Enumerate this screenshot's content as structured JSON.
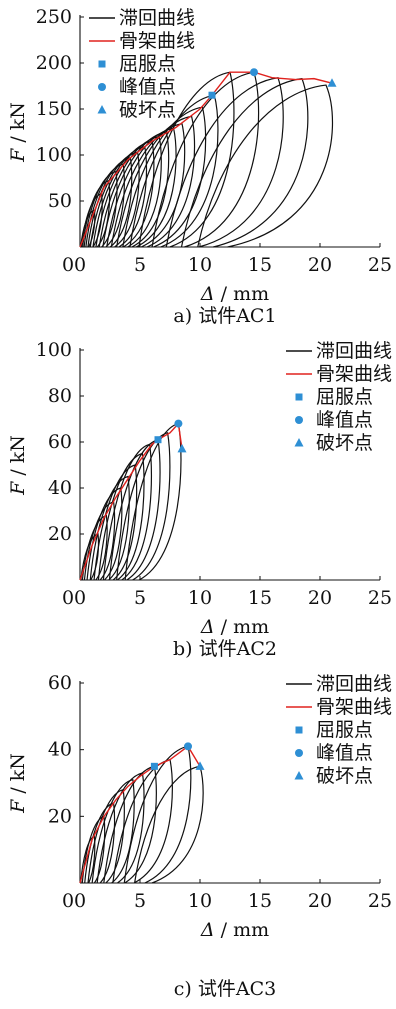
{
  "legend": {
    "hysteresis": "滞回曲线",
    "skeleton": "骨架曲线",
    "yield": "屈服点",
    "peak": "峰值点",
    "failure": "破坏点"
  },
  "colors": {
    "hysteresis": "#111111",
    "skeleton": "#e0221e",
    "marker": "#2e8fd4"
  },
  "chart_data": [
    {
      "type": "line",
      "caption": "a)  试件AC1",
      "xlabel_symbol": "Δ",
      "xlabel_unit": " / mm",
      "ylabel_symbol": "F",
      "ylabel_unit": " / kN",
      "xlim": [
        0,
        25
      ],
      "ylim": [
        0,
        250
      ],
      "xticks": [
        0,
        5,
        10,
        15,
        20,
        25
      ],
      "yticks": [
        50,
        100,
        150,
        200,
        250
      ],
      "skeleton": {
        "x": [
          0,
          2,
          4,
          6,
          8,
          10,
          11,
          12.5,
          14.5,
          16,
          18,
          19.5,
          21
        ],
        "y": [
          0,
          65,
          95,
          115,
          130,
          150,
          165,
          190,
          190,
          184,
          182,
          183,
          178
        ]
      },
      "yield_point": {
        "x": 11,
        "y": 165
      },
      "peak_point": {
        "x": 14.5,
        "y": 190
      },
      "failure_point": {
        "x": 21,
        "y": 178
      },
      "loop_peaks": {
        "x": [
          1.2,
          1.8,
          2.4,
          3.0,
          3.6,
          4.2,
          4.8,
          5.4,
          6.0,
          6.6,
          7.2,
          7.8,
          8.5,
          9.3,
          10.2,
          11.2,
          12.5,
          14.5,
          16.5,
          18.5,
          20.5
        ],
        "y": [
          40,
          58,
          72,
          82,
          90,
          97,
          103,
          109,
          115,
          120,
          125,
          129,
          134,
          142,
          152,
          165,
          190,
          190,
          184,
          183,
          176
        ]
      }
    },
    {
      "type": "line",
      "caption": "b)  试件AC2",
      "xlabel_symbol": "Δ",
      "xlabel_unit": " / mm",
      "ylabel_symbol": "F",
      "ylabel_unit": " / kN",
      "xlim": [
        0,
        25
      ],
      "ylim": [
        0,
        100
      ],
      "xticks": [
        0,
        5,
        10,
        15,
        20,
        25
      ],
      "yticks": [
        20,
        40,
        60,
        80,
        100
      ],
      "skeleton": {
        "x": [
          0,
          1,
          2,
          3,
          4,
          5,
          6,
          6.5,
          7.5,
          8.2,
          8.5
        ],
        "y": [
          0,
          15,
          27,
          36,
          44,
          52,
          59,
          61,
          64,
          68,
          57
        ]
      },
      "yield_point": {
        "x": 6.5,
        "y": 61
      },
      "peak_point": {
        "x": 8.2,
        "y": 68
      },
      "failure_point": {
        "x": 8.5,
        "y": 57
      },
      "loop_peaks": {
        "x": [
          1.5,
          2.2,
          2.8,
          3.4,
          4.0,
          4.6,
          5.2,
          5.8,
          6.5,
          7.3,
          8.2
        ],
        "y": [
          20,
          28,
          34,
          40,
          45,
          50,
          55,
          59,
          61,
          64,
          68
        ]
      }
    },
    {
      "type": "line",
      "caption": "c)  试件AC3",
      "xlabel_symbol": "Δ",
      "xlabel_unit": " / mm",
      "ylabel_symbol": "F",
      "ylabel_unit": " / kN",
      "xlim": [
        0,
        25
      ],
      "ylim": [
        0,
        60
      ],
      "xticks": [
        0,
        5,
        10,
        15,
        20,
        25
      ],
      "yticks": [
        20,
        40,
        60
      ],
      "skeleton": {
        "x": [
          0,
          1,
          2,
          3,
          4,
          5,
          6.2,
          7.5,
          9,
          10
        ],
        "y": [
          0,
          13,
          20,
          25,
          29,
          32,
          35,
          37,
          41,
          35
        ]
      },
      "yield_point": {
        "x": 6.2,
        "y": 35
      },
      "peak_point": {
        "x": 9,
        "y": 41
      },
      "failure_point": {
        "x": 10,
        "y": 35
      },
      "loop_peaks": {
        "x": [
          1.2,
          2.0,
          2.8,
          3.6,
          4.4,
          5.2,
          6.2,
          7.5,
          9.0,
          10.0
        ],
        "y": [
          14,
          20,
          24,
          28,
          31,
          33,
          35,
          37,
          41,
          35
        ]
      }
    }
  ]
}
